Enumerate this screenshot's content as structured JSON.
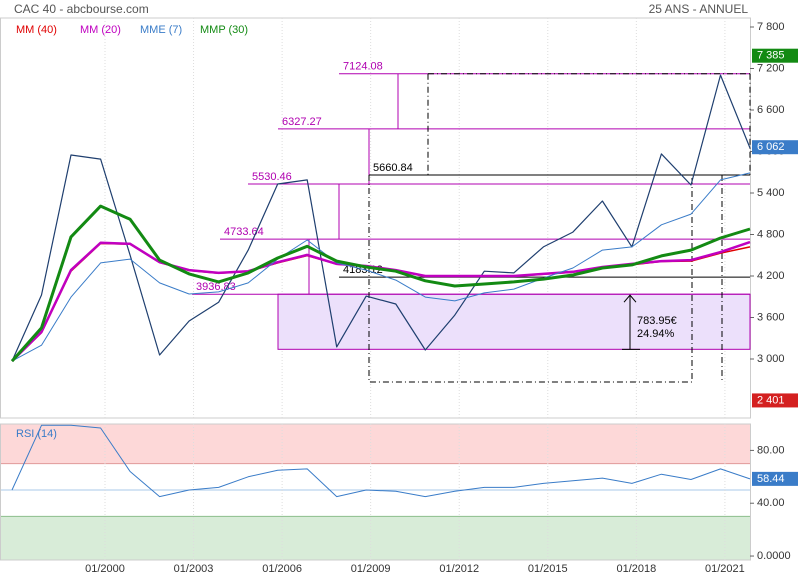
{
  "header": {
    "title": "CAC 40 - abcbourse.com",
    "period": "25 ANS - ANNUEL"
  },
  "chart_data": [
    {
      "type": "line",
      "x": [
        1996.85,
        1997.85,
        1998.85,
        1999.85,
        2000.85,
        2001.85,
        2002.85,
        2003.85,
        2004.85,
        2005.85,
        2006.85,
        2007.85,
        2008.85,
        2009.85,
        2010.85,
        2011.85,
        2012.85,
        2013.85,
        2014.85,
        2015.85,
        2016.85,
        2017.85,
        2018.85,
        2019.85,
        2020.85,
        2021.85
      ],
      "xlim": [
        1996.85,
        2021.85
      ],
      "xticks": [
        {
          "value": 2000,
          "label": "01/2000"
        },
        {
          "value": 2003,
          "label": "01/2003"
        },
        {
          "value": 2006,
          "label": "01/2006"
        },
        {
          "value": 2009,
          "label": "01/2009"
        },
        {
          "value": 2012,
          "label": "01/2012"
        },
        {
          "value": 2015,
          "label": "01/2015"
        },
        {
          "value": 2018,
          "label": "01/2018"
        },
        {
          "value": 2021,
          "label": "01/2021"
        }
      ],
      "ylim": [
        2147,
        7930
      ],
      "yticks": [
        {
          "value": 3000,
          "label": "3 000"
        },
        {
          "value": 3600,
          "label": "3 600"
        },
        {
          "value": 4200,
          "label": "4 200"
        },
        {
          "value": 4800,
          "label": "4 800"
        },
        {
          "value": 5400,
          "label": "5 400"
        },
        {
          "value": 6000,
          "label": "6 000"
        },
        {
          "value": 6600,
          "label": "6 600"
        },
        {
          "value": 7200,
          "label": "7 200"
        },
        {
          "value": 7800,
          "label": "7 800"
        }
      ],
      "grid": true,
      "price": {
        "color": "#1f3f6f",
        "values": [
          2970,
          3925,
          5950,
          5890,
          4500,
          3058,
          3550,
          3820,
          4575,
          5530,
          5590,
          3175,
          3910,
          3795,
          3130,
          3635,
          4270,
          4245,
          4620,
          4835,
          5285,
          4620,
          5965,
          5515,
          7105,
          6050
        ]
      },
      "series": [
        {
          "name": "MM (40)",
          "color": "#e00000",
          "width": 1.5,
          "values": [
            2970,
            3380,
            4270,
            4670,
            4660,
            4395,
            4280,
            4240,
            4265,
            4390,
            4495,
            4370,
            4340,
            4280,
            4195,
            4195,
            4195,
            4195,
            4225,
            4255,
            4315,
            4360,
            4410,
            4415,
            4530,
            4620
          ]
        },
        {
          "name": "MM (20)",
          "color": "#c000c0",
          "width": 2.5,
          "values": [
            2970,
            3390,
            4285,
            4680,
            4665,
            4400,
            4285,
            4245,
            4270,
            4400,
            4505,
            4375,
            4345,
            4285,
            4200,
            4200,
            4200,
            4200,
            4230,
            4260,
            4330,
            4375,
            4415,
            4430,
            4545,
            4690
          ]
        },
        {
          "name": "MME (7)",
          "color": "#3a7cc8",
          "width": 1,
          "values": [
            2970,
            3200,
            3895,
            4390,
            4445,
            4100,
            3940,
            3970,
            4100,
            4445,
            4720,
            4390,
            4285,
            4140,
            3895,
            3840,
            3955,
            4010,
            4170,
            4315,
            4575,
            4620,
            4940,
            5095,
            5590,
            5690
          ]
        },
        {
          "name": "MMP (30)",
          "color": "#138a13",
          "width": 3,
          "values": [
            2970,
            3450,
            4765,
            5210,
            5020,
            4430,
            4230,
            4115,
            4245,
            4460,
            4630,
            4415,
            4330,
            4270,
            4130,
            4055,
            4085,
            4115,
            4155,
            4215,
            4315,
            4360,
            4490,
            4575,
            4750,
            4880
          ]
        }
      ],
      "levels": [
        7124.08,
        6327.27,
        5530.46,
        4733.64,
        3936.83
      ],
      "level_base": 3140.02,
      "level_color": "#b000b0",
      "reference_lines": [
        5660.84,
        4183.12
      ],
      "measure": {
        "amount": "783.95€",
        "percent": "24.94%"
      },
      "markers": [
        {
          "value": 7385,
          "label": "7 385",
          "color": "#138a13"
        },
        {
          "value": 6062,
          "label": "6 062",
          "color": "#3a7cc8"
        },
        {
          "value": 2401,
          "label": "2 401",
          "color": "#d42020"
        }
      ]
    },
    {
      "type": "line",
      "title": "RSI (14)",
      "color": "#3a7cc8",
      "values": [
        50,
        99,
        99,
        97,
        64,
        45,
        50,
        52,
        60,
        65,
        66,
        45,
        50,
        49,
        45,
        49,
        52,
        52,
        55,
        57,
        59,
        55,
        62,
        58,
        66,
        58.44
      ],
      "value_label": {
        "value": 58.44,
        "label": "58.44"
      },
      "ylim": [
        -3,
        100
      ],
      "yticks": [
        {
          "value": 0,
          "label": "0.0000"
        },
        {
          "value": 40,
          "label": "40.00"
        },
        {
          "value": 80,
          "label": "80.00"
        }
      ],
      "upper": 70,
      "lower": 30,
      "mid": 50
    }
  ]
}
